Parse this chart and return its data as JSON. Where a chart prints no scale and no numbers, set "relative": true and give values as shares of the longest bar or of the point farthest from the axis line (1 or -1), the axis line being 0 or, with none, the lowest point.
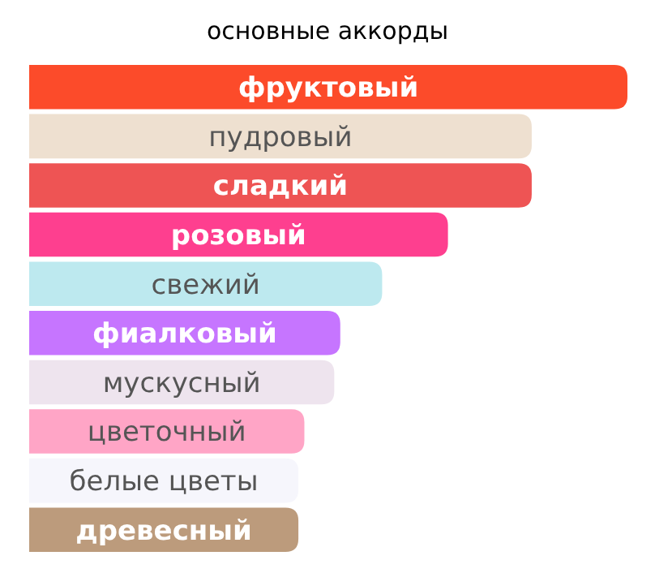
{
  "chart_data": {
    "type": "bar",
    "orientation": "horizontal",
    "relative": true,
    "title": "основные аккорды",
    "categories": [
      "фруктовый",
      "пудровый",
      "сладкий",
      "розовый",
      "свежий",
      "фиалковый",
      "мускусный",
      "цветочный",
      "белые цветы",
      "древесный"
    ],
    "values": [
      1,
      0.84,
      0.84,
      0.7,
      0.59,
      0.52,
      0.51,
      0.46,
      0.45,
      0.45
    ],
    "colors": [
      "#fc4b2a",
      "#eee0d0",
      "#ee5454",
      "#fe3f8f",
      "#bde9ef",
      "#c675ff",
      "#eee4ee",
      "#ffa5c6",
      "#f6f6fc",
      "#bc9b7c"
    ]
  }
}
